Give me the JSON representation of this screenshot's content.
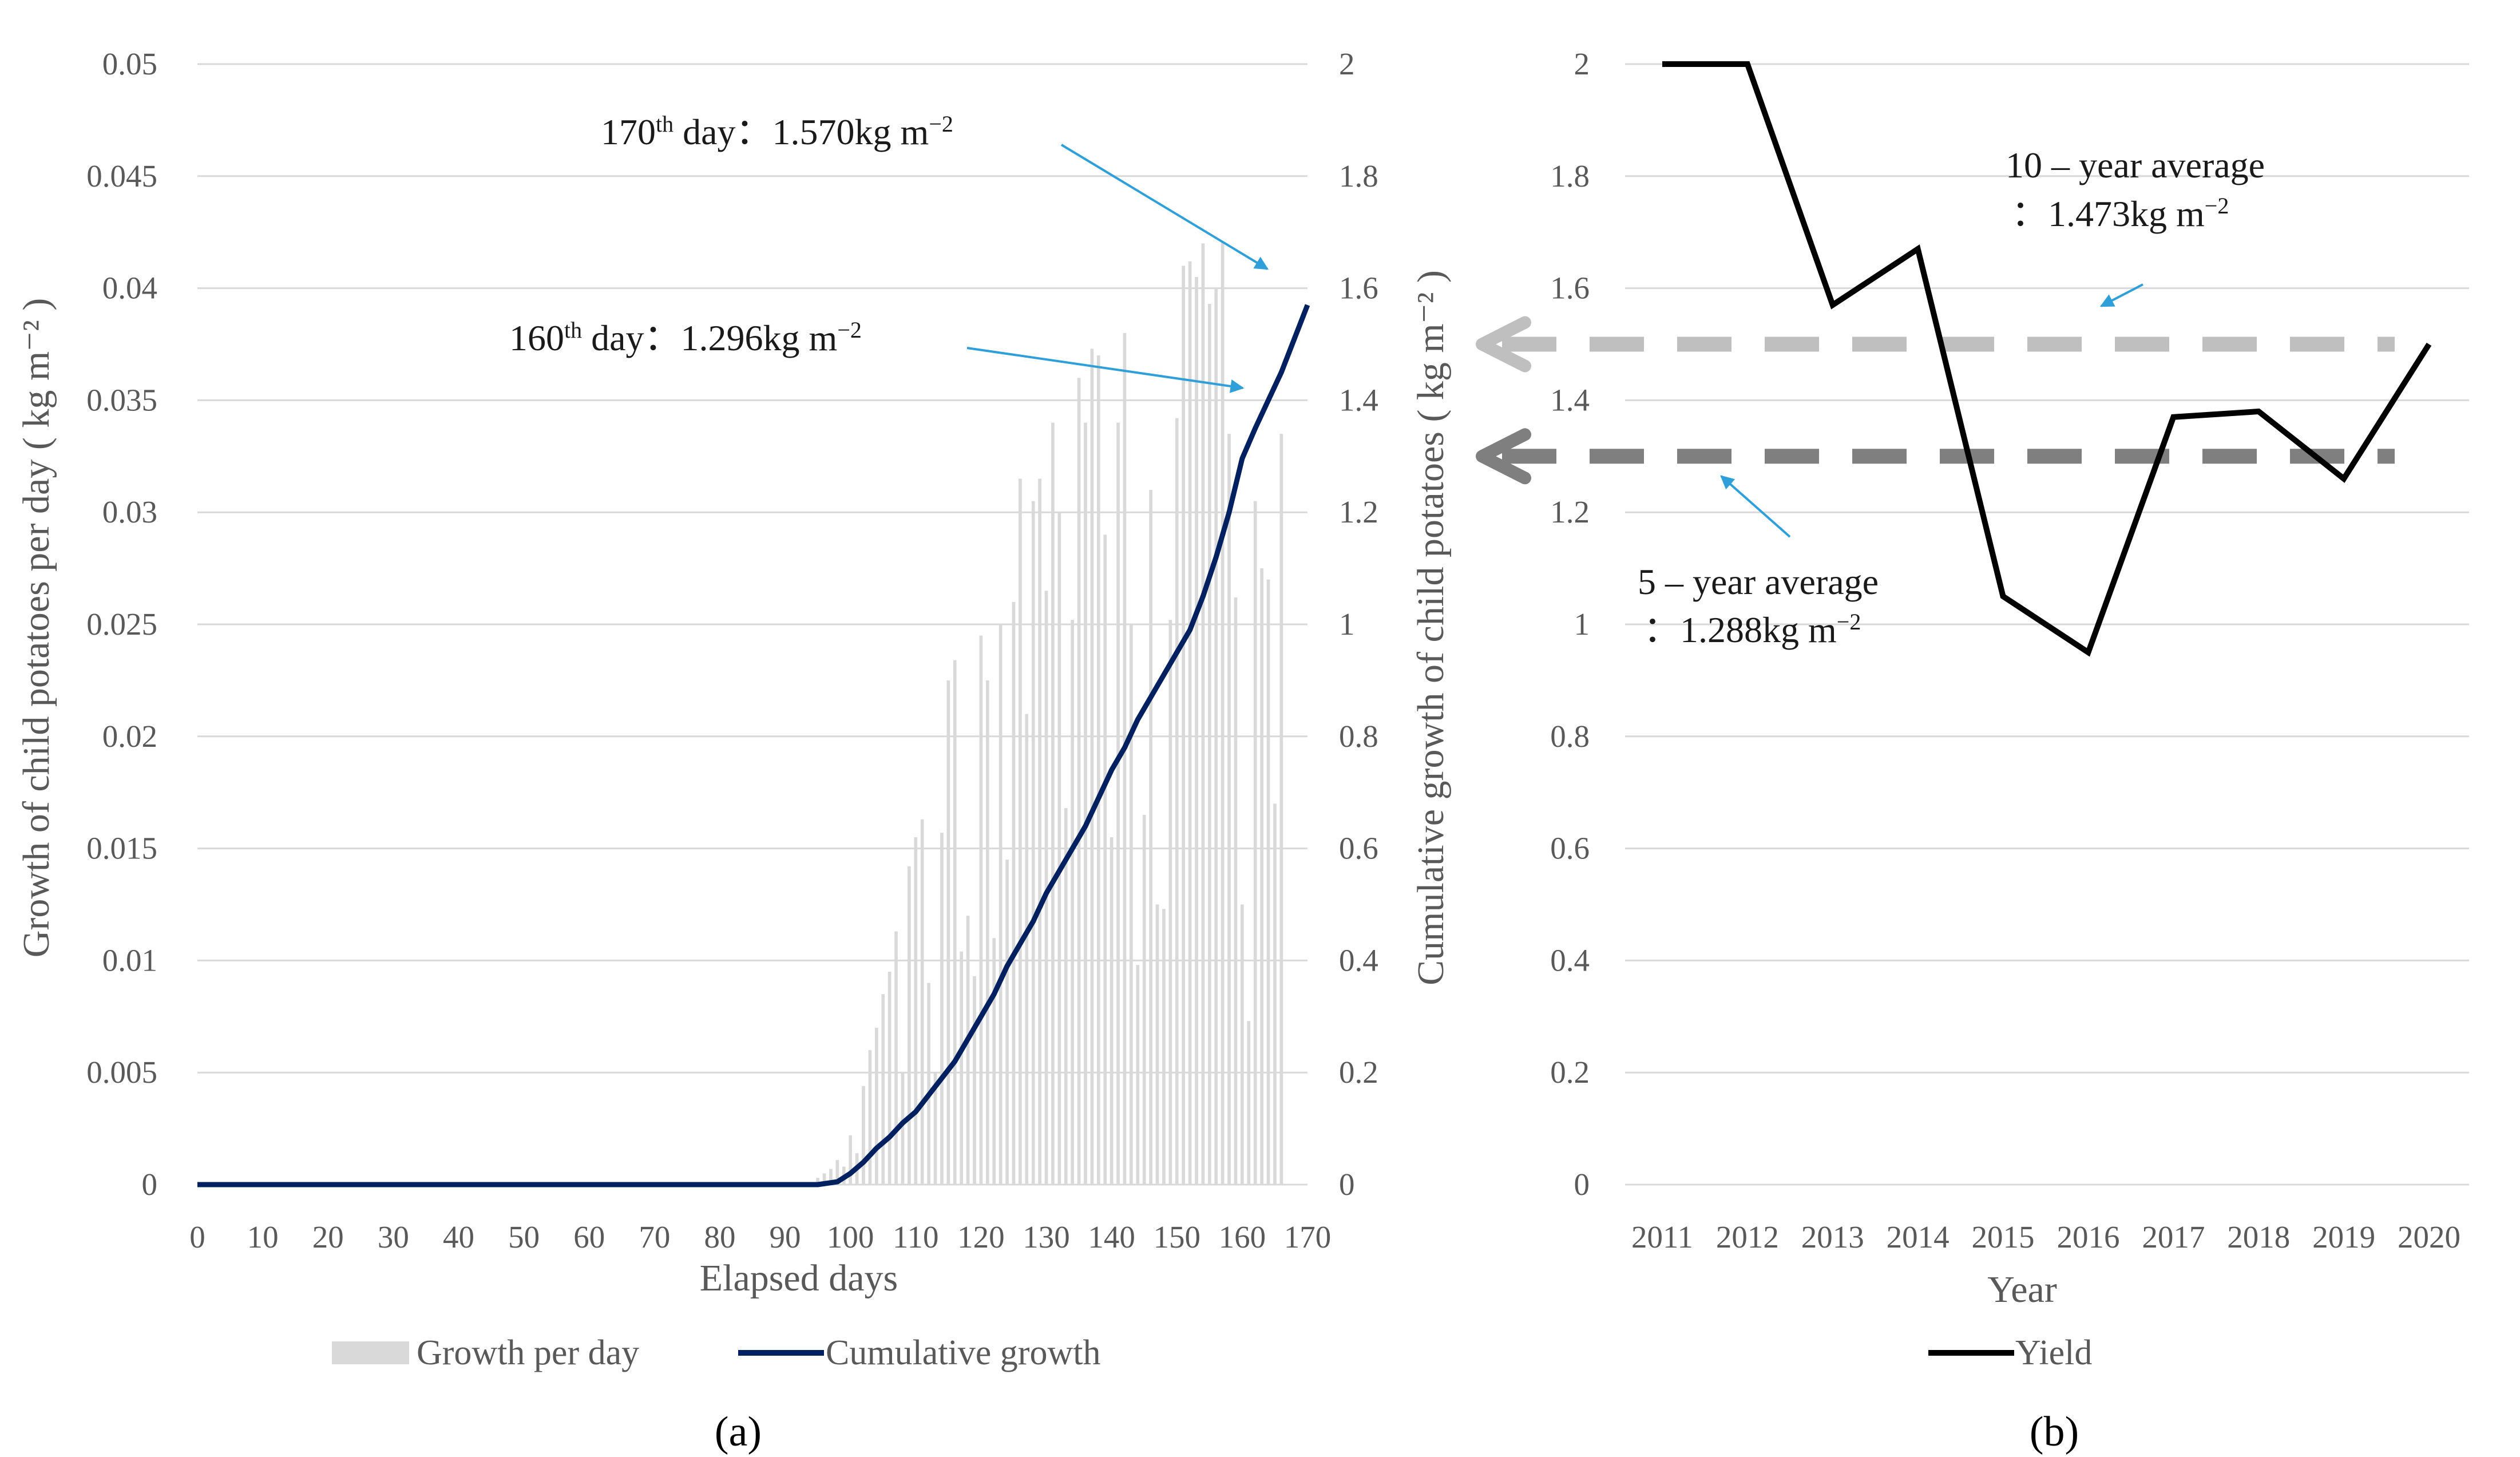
{
  "chart_data": [
    {
      "id": "a",
      "type": "bar+line",
      "panel_label": "(a)",
      "xlabel": "Elapsed days",
      "ylabel_left": "Growth of child potatoes per day ( kg m⁻² )",
      "ylabel_right": "Cumulative growth of child potatoes ( kg m⁻² )",
      "x_ticks": [
        "0",
        "10",
        "20",
        "30",
        "40",
        "50",
        "60",
        "70",
        "80",
        "90",
        "100",
        "110",
        "120",
        "130",
        "140",
        "150",
        "160",
        "170"
      ],
      "y_left_ticks": [
        "0",
        "0.005",
        "0.01",
        "0.015",
        "0.02",
        "0.025",
        "0.03",
        "0.035",
        "0.04",
        "0.045",
        "0.05"
      ],
      "y_right_ticks": [
        "0",
        "0.2",
        "0.4",
        "0.6",
        "0.8",
        "1",
        "1.2",
        "1.4",
        "1.6",
        "1.8",
        "2"
      ],
      "xlim": [
        0,
        170
      ],
      "ylim_left": [
        0,
        0.05
      ],
      "ylim_right": [
        0,
        2
      ],
      "grid": true,
      "legend_position": "bottom",
      "series": [
        {
          "name": "Growth per day",
          "type": "bar",
          "axis": "left",
          "color": "#d9d9d9",
          "start_day": 95,
          "values": [
            0.0003,
            0.0005,
            0.0007,
            0.0011,
            0.0008,
            0.0022,
            0.0014,
            0.0044,
            0.006,
            0.007,
            0.0085,
            0.0095,
            0.0113,
            0.005,
            0.0142,
            0.0155,
            0.0163,
            0.009,
            0.005,
            0.0157,
            0.0225,
            0.0234,
            0.0104,
            0.012,
            0.0093,
            0.0245,
            0.0225,
            0.011,
            0.025,
            0.0145,
            0.026,
            0.0315,
            0.021,
            0.0305,
            0.0315,
            0.0265,
            0.034,
            0.03,
            0.0168,
            0.0252,
            0.036,
            0.034,
            0.0373,
            0.037,
            0.029,
            0.0155,
            0.034,
            0.038,
            0.025,
            0.0098,
            0.0165,
            0.031,
            0.0125,
            0.0123,
            0.0252,
            0.0342,
            0.041,
            0.0412,
            0.0405,
            0.042,
            0.0393,
            0.04,
            0.0421,
            0.0335,
            0.0262,
            0.0125,
            0.0073,
            0.0305,
            0.0275,
            0.027,
            0.017,
            0.0335
          ]
        },
        {
          "name": "Cumulative growth",
          "type": "line",
          "axis": "right",
          "color": "#002060",
          "x": [
            95,
            98,
            100,
            102,
            104,
            106,
            108,
            110,
            112,
            114,
            116,
            118,
            120,
            122,
            124,
            126,
            128,
            130,
            132,
            134,
            136,
            138,
            140,
            142,
            144,
            146,
            148,
            150,
            152,
            154,
            156,
            158,
            160,
            162,
            164,
            166,
            168,
            170
          ],
          "values": [
            0,
            0.005,
            0.02,
            0.04,
            0.065,
            0.085,
            0.11,
            0.13,
            0.16,
            0.19,
            0.22,
            0.26,
            0.3,
            0.34,
            0.39,
            0.43,
            0.47,
            0.52,
            0.56,
            0.6,
            0.64,
            0.69,
            0.74,
            0.78,
            0.83,
            0.87,
            0.91,
            0.95,
            0.99,
            1.05,
            1.12,
            1.2,
            1.296,
            1.35,
            1.4,
            1.45,
            1.51,
            1.57
          ]
        }
      ],
      "annotations": [
        {
          "day": 170,
          "label_main": "170",
          "label_sup": "th",
          "label_rest": " day：1.570kg m",
          "label_exp": "−2",
          "value": 1.57
        },
        {
          "day": 160,
          "label_main": "160",
          "label_sup": "th",
          "label_rest": " day：1.296kg m",
          "label_exp": "−2",
          "value": 1.296
        }
      ]
    },
    {
      "id": "b",
      "type": "line",
      "panel_label": "(b)",
      "xlabel": "Year",
      "categories": [
        "2011",
        "2012",
        "2013",
        "2014",
        "2015",
        "2016",
        "2017",
        "2018",
        "2019",
        "2020"
      ],
      "y_ticks": [
        "0",
        "0.2",
        "0.4",
        "0.6",
        "0.8",
        "1",
        "1.2",
        "1.4",
        "1.6",
        "1.8",
        "2"
      ],
      "ylim": [
        0,
        2
      ],
      "grid": true,
      "legend_position": "bottom",
      "series": [
        {
          "name": "Yield",
          "color": "#000000",
          "values": [
            2.0,
            2.0,
            1.57,
            1.67,
            1.05,
            0.95,
            1.37,
            1.38,
            1.26,
            1.5
          ]
        }
      ],
      "reference_lines": [
        {
          "name": "10 – year average",
          "value_text": "：1.473kg m",
          "exp": "−2",
          "y": 1.5,
          "color": "#bfbfbf"
        },
        {
          "name": "5 – year average",
          "value_text": "：1.288kg m",
          "exp": "−2",
          "y": 1.3,
          "color": "#7f7f7f"
        }
      ]
    }
  ],
  "annotation_arrow_color": "#2e9fd8"
}
